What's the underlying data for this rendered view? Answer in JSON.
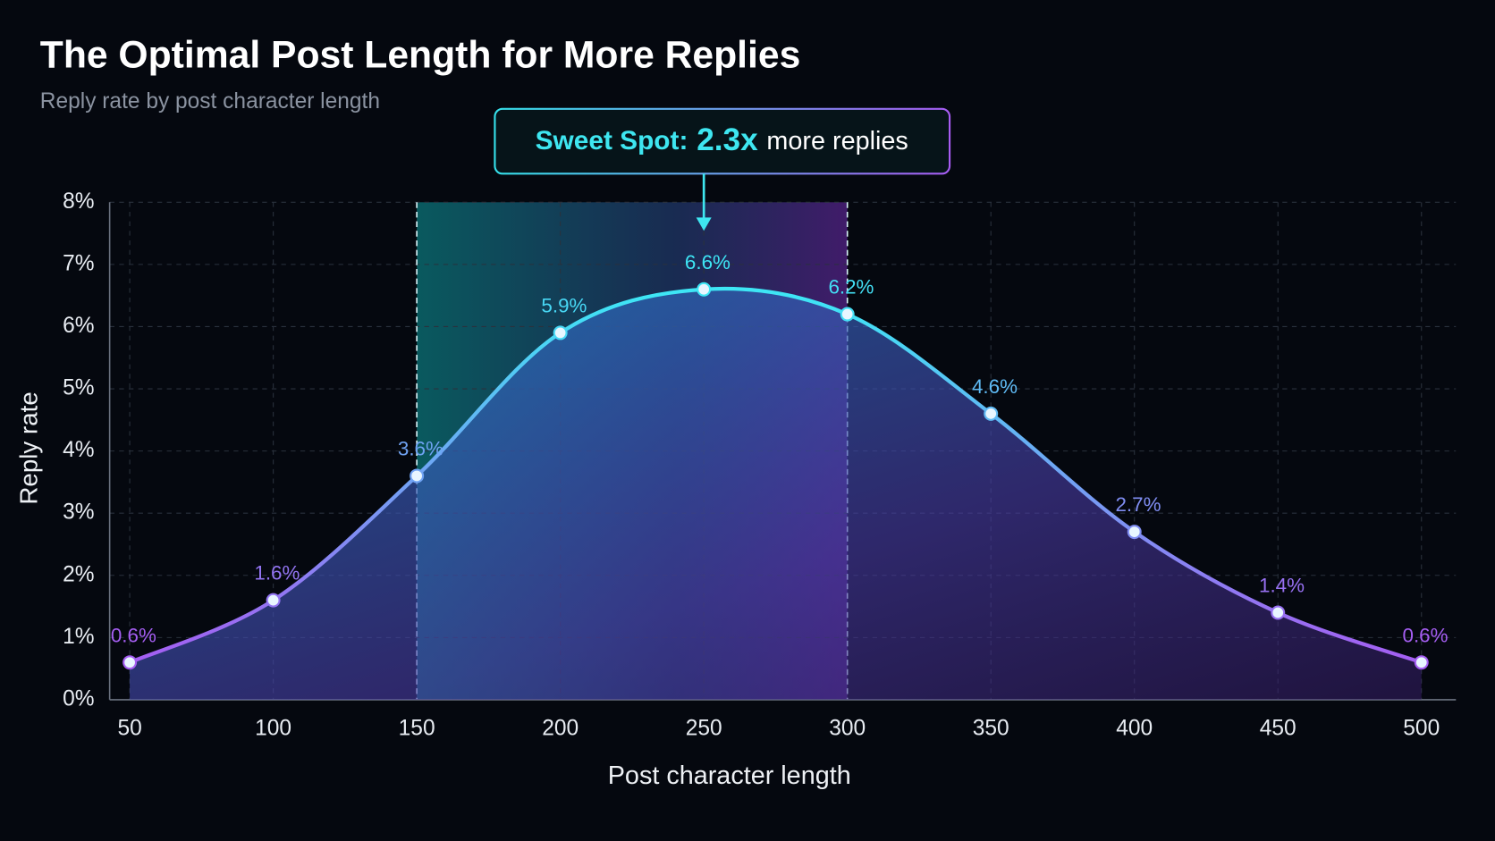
{
  "chart_data": {
    "type": "line",
    "title": "The Optimal Post Length for More Replies",
    "subtitle": "Reply rate by post character length",
    "x_label": "Post character length",
    "y_label": "Reply rate",
    "x": [
      50,
      100,
      150,
      200,
      250,
      300,
      350,
      400,
      450,
      500
    ],
    "series": [
      {
        "name": "Reply rate",
        "gradient": [
          "#a65cf2",
          "#3ee6f5"
        ],
        "values": [
          0.6,
          1.6,
          3.6,
          5.9,
          6.6,
          6.2,
          4.6,
          2.7,
          1.4,
          0.6
        ],
        "value_labels": [
          "0.6%",
          "1.6%",
          "3.6%",
          "5.9%",
          "6.6%",
          "6.2%",
          "4.6%",
          "2.7%",
          "1.4%",
          "0.6%"
        ]
      }
    ],
    "xlim": [
      43,
      512
    ],
    "xticks": [
      50,
      100,
      150,
      200,
      250,
      300,
      350,
      400,
      450,
      500
    ],
    "ylim": [
      0,
      8
    ],
    "yticks": [
      {
        "value": 0,
        "label": "0%"
      },
      {
        "value": 1,
        "label": "1%"
      },
      {
        "value": 2,
        "label": "2%"
      },
      {
        "value": 3,
        "label": "3%"
      },
      {
        "value": 4,
        "label": "4%"
      },
      {
        "value": 5,
        "label": "5%"
      },
      {
        "value": 6,
        "label": "6%"
      },
      {
        "value": 7,
        "label": "7%"
      },
      {
        "value": 8,
        "label": "8%"
      }
    ],
    "grid": true,
    "highlight_range": [
      150,
      300
    ],
    "annotation": {
      "x": 250,
      "label": "Sweet Spot:",
      "value": "2.3x",
      "text": "more replies"
    }
  }
}
